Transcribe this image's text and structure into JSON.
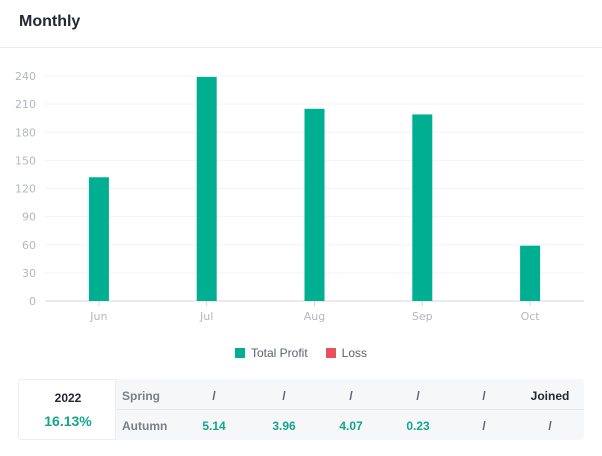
{
  "header": {
    "title": "Monthly"
  },
  "chart_data": {
    "type": "bar",
    "title": "",
    "categories": [
      "Jun",
      "Jul",
      "Aug",
      "Sep",
      "Oct"
    ],
    "series": [
      {
        "name": "Total Profit",
        "color": "#00af91",
        "values": [
          132,
          239,
          205,
          199,
          59
        ]
      },
      {
        "name": "Loss",
        "color": "#e8505b",
        "values": [
          0,
          0,
          0,
          0,
          0
        ]
      }
    ],
    "yticks": [
      0,
      30,
      60,
      90,
      120,
      150,
      180,
      210,
      240
    ],
    "ylim": [
      0,
      240
    ],
    "xlabel": "",
    "ylabel": "",
    "grid": true,
    "legend_position": "bottom-center"
  },
  "legend": {
    "profit_label": "Total Profit",
    "loss_label": "Loss",
    "profit_color": "#00af91",
    "loss_color": "#e8505b"
  },
  "stats": {
    "year": "2022",
    "year_pct": "16.13%",
    "rows": [
      {
        "label": "Spring",
        "cells": [
          "/",
          "/",
          "/",
          "/",
          "/",
          "Joined"
        ]
      },
      {
        "label": "Autumn",
        "cells": [
          "5.14",
          "3.96",
          "4.07",
          "0.23",
          "/",
          "/"
        ]
      }
    ]
  }
}
